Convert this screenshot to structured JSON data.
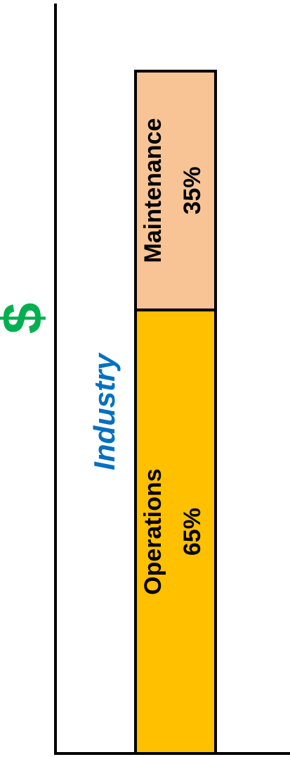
{
  "chart_data": {
    "type": "bar",
    "stacked": true,
    "y_label": "$",
    "y_label_color": "#00b050",
    "categories": [
      "Industry"
    ],
    "category_color": "#0070c0",
    "series": [
      {
        "name": "Operations",
        "color": "#ffc000",
        "values": [
          65
        ],
        "value_labels": [
          "65%"
        ]
      },
      {
        "name": "Maintenance",
        "color": "#f8c496",
        "values": [
          35
        ],
        "value_labels": [
          "35%"
        ]
      }
    ]
  }
}
